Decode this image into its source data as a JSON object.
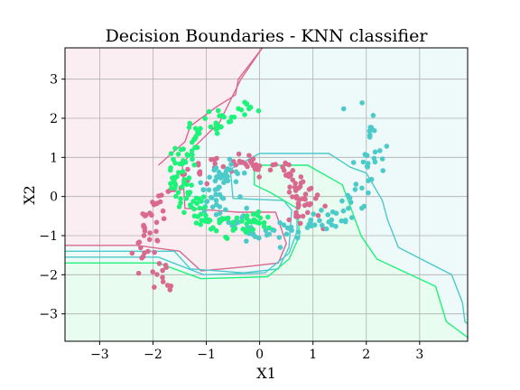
{
  "chart_data": {
    "type": "scatter",
    "title": "Decision Boundaries - KNN classifier",
    "xlabel": "X1",
    "ylabel": "X2",
    "xlim": [
      -3.65,
      3.9
    ],
    "ylim": [
      -3.7,
      3.8
    ],
    "xticks": [
      -3,
      -2,
      -1,
      0,
      1,
      2,
      3
    ],
    "yticks": [
      -3,
      -2,
      -1,
      0,
      1,
      2,
      3
    ],
    "xtick_labels": [
      "−3",
      "−2",
      "−1",
      "0",
      "1",
      "2",
      "3"
    ],
    "ytick_labels": [
      "−3",
      "−2",
      "−1",
      "0",
      "1",
      "2",
      "3"
    ],
    "grid": true,
    "legend": "none",
    "colors": {
      "class_pink": "#d9698f",
      "class_teal": "#4cc9c9",
      "class_green": "#1df27a",
      "region_pink": "#fbeef2",
      "region_teal": "#eefafa",
      "region_green": "#e8fcf0"
    },
    "regions": [
      {
        "class": "pink",
        "polygon": [
          [
            -3.65,
            3.8
          ],
          [
            0.05,
            3.8
          ],
          [
            -0.35,
            3.0
          ],
          [
            -0.75,
            1.9
          ],
          [
            -1.2,
            1.3
          ],
          [
            -1.45,
            0.8
          ],
          [
            -1.4,
            -0.3
          ],
          [
            -0.4,
            -0.4
          ],
          [
            0.3,
            -0.4
          ],
          [
            0.5,
            -1.2
          ],
          [
            0.35,
            -1.7
          ],
          [
            -0.3,
            -1.8
          ],
          [
            -1.1,
            -1.9
          ],
          [
            -1.5,
            -1.4
          ],
          [
            -2.3,
            -1.25
          ],
          [
            -3.65,
            -1.25
          ]
        ]
      },
      {
        "class": "green",
        "polygon": [
          [
            -3.65,
            -1.7
          ],
          [
            -1.9,
            -1.7
          ],
          [
            -1.1,
            -2.1
          ],
          [
            0.15,
            -2.05
          ],
          [
            0.55,
            -1.6
          ],
          [
            0.75,
            -1.0
          ],
          [
            0.7,
            -0.3
          ],
          [
            0.2,
            0.1
          ],
          [
            -0.1,
            0.3
          ],
          [
            -0.1,
            0.8
          ],
          [
            0.9,
            0.8
          ],
          [
            1.55,
            0.3
          ],
          [
            1.9,
            -1.0
          ],
          [
            2.2,
            -1.6
          ],
          [
            3.3,
            -2.3
          ],
          [
            3.5,
            -3.2
          ],
          [
            3.9,
            -3.6
          ],
          [
            3.9,
            -3.7
          ],
          [
            -3.65,
            -3.7
          ]
        ]
      }
    ],
    "boundaries": [
      {
        "class": "pink",
        "points": [
          [
            -3.65,
            -1.25
          ],
          [
            -2.3,
            -1.25
          ],
          [
            -1.5,
            -1.4
          ],
          [
            -1.1,
            -1.9
          ],
          [
            -0.3,
            -1.8
          ],
          [
            0.35,
            -1.7
          ],
          [
            0.5,
            -1.2
          ],
          [
            0.3,
            -0.4
          ],
          [
            -0.4,
            -0.4
          ],
          [
            -1.4,
            -0.3
          ],
          [
            -1.45,
            0.8
          ],
          [
            -1.2,
            1.3
          ],
          [
            -0.75,
            1.9
          ],
          [
            -0.35,
            3.0
          ],
          [
            0.05,
            3.8
          ]
        ]
      },
      {
        "class": "pink",
        "points": [
          [
            -1.9,
            0.8
          ],
          [
            -1.4,
            1.4
          ],
          [
            -1.3,
            1.8
          ],
          [
            -0.8,
            2.3
          ],
          [
            -0.45,
            2.6
          ],
          [
            -0.4,
            3.0
          ],
          [
            0.05,
            3.8
          ]
        ]
      },
      {
        "class": "teal",
        "points": [
          [
            -3.65,
            -1.4
          ],
          [
            -1.6,
            -1.4
          ],
          [
            -1.3,
            -1.85
          ],
          [
            -0.3,
            -1.95
          ],
          [
            0.35,
            -1.85
          ],
          [
            0.55,
            -1.3
          ],
          [
            0.6,
            -0.35
          ],
          [
            0.45,
            -0.1
          ],
          [
            -0.5,
            -0.05
          ],
          [
            -0.55,
            0.7
          ],
          [
            0.0,
            1.1
          ],
          [
            1.3,
            1.1
          ],
          [
            1.7,
            0.75
          ],
          [
            2.0,
            0.6
          ],
          [
            2.3,
            -0.1
          ],
          [
            2.4,
            -0.6
          ],
          [
            2.6,
            -1.3
          ],
          [
            3.6,
            -2.0
          ],
          [
            3.8,
            -2.7
          ],
          [
            3.85,
            -3.2
          ],
          [
            3.9,
            -3.25
          ]
        ]
      },
      {
        "class": "teal",
        "points": [
          [
            -3.65,
            -1.55
          ],
          [
            -1.9,
            -1.55
          ],
          [
            -1.05,
            -2.0
          ],
          [
            0.1,
            -1.95
          ],
          [
            0.55,
            -1.45
          ],
          [
            0.7,
            -0.9
          ],
          [
            0.7,
            -0.35
          ]
        ]
      },
      {
        "class": "green",
        "points": [
          [
            -3.65,
            -1.7
          ],
          [
            -1.9,
            -1.7
          ],
          [
            -1.1,
            -2.1
          ],
          [
            0.15,
            -2.05
          ],
          [
            0.55,
            -1.6
          ],
          [
            0.75,
            -1.0
          ],
          [
            0.7,
            -0.3
          ],
          [
            0.2,
            0.1
          ],
          [
            -0.1,
            0.3
          ],
          [
            -0.1,
            0.8
          ],
          [
            0.9,
            0.8
          ],
          [
            1.55,
            0.3
          ],
          [
            1.9,
            -1.0
          ],
          [
            2.2,
            -1.6
          ],
          [
            3.3,
            -2.3
          ],
          [
            3.5,
            -3.2
          ],
          [
            3.9,
            -3.6
          ]
        ]
      }
    ],
    "series": [
      {
        "class": "pink",
        "spiral": {
          "cx": 0.1,
          "cy": -0.55,
          "r0": 0.45,
          "r1": 2.55,
          "t0": -0.3,
          "t1": 3.9,
          "n": 150,
          "noise": 0.14,
          "seed": 11
        }
      },
      {
        "class": "teal",
        "spiral": {
          "cx": -0.1,
          "cy": 0.55,
          "r0": 0.45,
          "r1": 2.55,
          "t0": 2.85,
          "t1": 7.05,
          "n": 150,
          "noise": 0.14,
          "seed": 23
        }
      },
      {
        "class": "green",
        "spiral": {
          "cx": 0.0,
          "cy": -0.05,
          "r0": 0.5,
          "r1": 2.35,
          "t0": 1.6,
          "t1": 4.65,
          "n": 150,
          "noise": 0.14,
          "seed": 37,
          "mirror": true
        }
      }
    ]
  }
}
